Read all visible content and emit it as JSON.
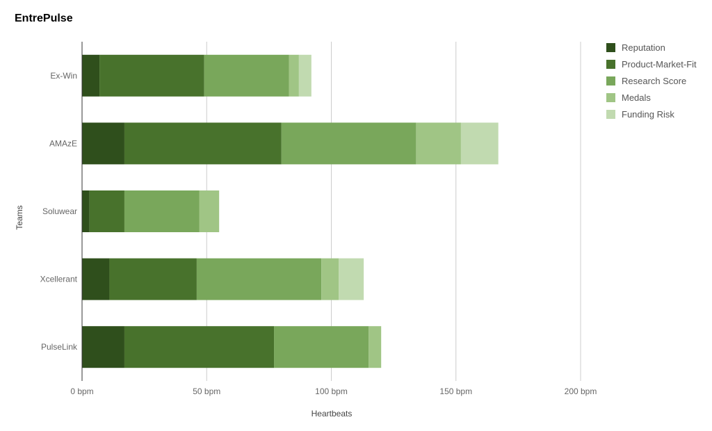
{
  "chart_data": {
    "type": "bar",
    "orientation": "horizontal",
    "stacked": true,
    "title": "EntrePulse",
    "xlabel": "Heartbeats",
    "ylabel": "Teams",
    "categories": [
      "Ex-Win",
      "AMAzE",
      "Soluwear",
      "Xcellerant",
      "PulseLink"
    ],
    "x_tick_labels": [
      "0 bpm",
      "50 bpm",
      "100 bpm",
      "150 bpm",
      "200 bpm"
    ],
    "xlim": [
      0,
      200
    ],
    "grid": true,
    "legend_position": "top-right",
    "series": [
      {
        "name": "Reputation",
        "color": "#2f4f1c",
        "values": [
          7,
          17,
          3,
          11,
          17
        ]
      },
      {
        "name": "Product-Market-Fit",
        "color": "#48722c",
        "values": [
          42,
          63,
          14,
          35,
          60
        ]
      },
      {
        "name": "Research Score",
        "color": "#79a75b",
        "values": [
          34,
          54,
          30,
          50,
          38
        ]
      },
      {
        "name": "Medals",
        "color": "#a0c585",
        "values": [
          4,
          18,
          8,
          7,
          5
        ]
      },
      {
        "name": "Funding Risk",
        "color": "#c1dab0",
        "values": [
          5,
          15,
          0,
          10,
          0
        ]
      }
    ]
  }
}
